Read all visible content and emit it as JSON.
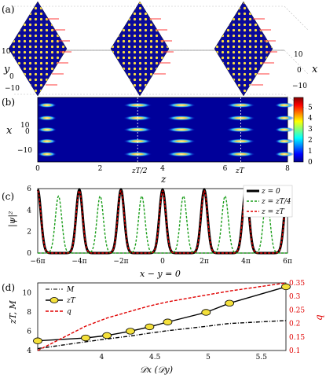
{
  "figure": {
    "panels": [
      {
        "id": "a",
        "label": "(a)",
        "axes": {
          "y_label": "y",
          "x_label": "x"
        },
        "ticks_left": [
          "10",
          "0",
          "−10"
        ],
        "ticks_right": [
          "10",
          "0",
          "−10"
        ]
      },
      {
        "id": "b",
        "label": "(b)",
        "axes": {
          "x_label": "z",
          "y_label": "x"
        },
        "x_ticks": [
          "0",
          "2",
          "4",
          "6",
          "8"
        ],
        "y_ticks": [
          "10",
          "0",
          "−10"
        ],
        "marker_labels": [
          "zT/2",
          "zT"
        ],
        "colorbar_ticks": [
          "5",
          "4",
          "3",
          "2",
          "1",
          "0"
        ]
      },
      {
        "id": "c",
        "label": "(c)",
        "axes": {
          "x_label": "x − y = 0",
          "y_label": "|ψ|²"
        },
        "x_ticks": [
          "−6π",
          "−4π",
          "−2π",
          "0",
          "2π",
          "4π",
          "6π"
        ],
        "y_ticks": [
          "6",
          "4",
          "2",
          "0"
        ],
        "legend": [
          "z = 0",
          "z = zT/4",
          "z = zT"
        ]
      },
      {
        "id": "d",
        "label": "(d)",
        "axes": {
          "x_label": "𝒟x (𝒟y)",
          "y_left_label": "zT, M",
          "y_right_label": "q"
        },
        "x_ticks": [
          "4",
          "4.5",
          "5",
          "5.5"
        ],
        "y_left_ticks": [
          "10",
          "8",
          "6",
          "4"
        ],
        "y_right_ticks": [
          "0.35",
          "0.3",
          "0.25",
          "0.2",
          "0.15",
          "0.1"
        ],
        "legend": [
          "M",
          "zT",
          "q"
        ]
      }
    ]
  },
  "chart_data": [
    {
      "type": "heatmap",
      "panel": "b",
      "x_range": [
        0,
        8
      ],
      "y_range": [
        -12,
        12
      ],
      "colorbar_range": [
        0,
        5
      ],
      "vertical_markers": [
        3.2,
        6.5
      ]
    },
    {
      "type": "line",
      "panel": "c",
      "xlim_pi": [
        -6,
        6
      ],
      "ylim": [
        0,
        6
      ],
      "series": [
        {
          "name": "z = 0",
          "color": "#000000",
          "peaks_x_pi": [
            -6,
            -4,
            -2,
            0,
            2,
            4,
            6
          ],
          "peak_height": 5.9
        },
        {
          "name": "z = zT/4",
          "color": "#1a9e1a",
          "peaks_x_pi": [
            -5,
            -3,
            -1,
            1,
            3,
            5
          ],
          "peak_height": 5.3
        },
        {
          "name": "z = zT",
          "color": "#e00000",
          "peaks_x_pi": [
            -6,
            -4,
            -2,
            0,
            2,
            4,
            6
          ],
          "peak_height": 5.8
        }
      ]
    },
    {
      "type": "line",
      "panel": "d",
      "x": [
        3.4,
        3.85,
        4.05,
        4.27,
        4.45,
        4.62,
        4.98,
        5.2,
        5.73
      ],
      "xlim": [
        3.4,
        5.73
      ],
      "ylim_left": [
        4,
        11
      ],
      "ylim_right": [
        0.1,
        0.35
      ],
      "series": [
        {
          "name": "zT",
          "axis": "left",
          "color": "#000000",
          "values": [
            5.0,
            5.3,
            5.55,
            6.0,
            6.45,
            6.95,
            7.95,
            8.9,
            10.6
          ]
        },
        {
          "name": "M",
          "axis": "left",
          "color": "#000000",
          "values": [
            4.2,
            4.9,
            5.2,
            5.5,
            5.8,
            6.05,
            6.5,
            6.8,
            7.1
          ]
        },
        {
          "name": "q",
          "axis": "right",
          "color": "#e00000",
          "values": [
            0.1,
            0.19,
            0.22,
            0.245,
            0.265,
            0.28,
            0.305,
            0.32,
            0.35
          ]
        }
      ]
    }
  ]
}
